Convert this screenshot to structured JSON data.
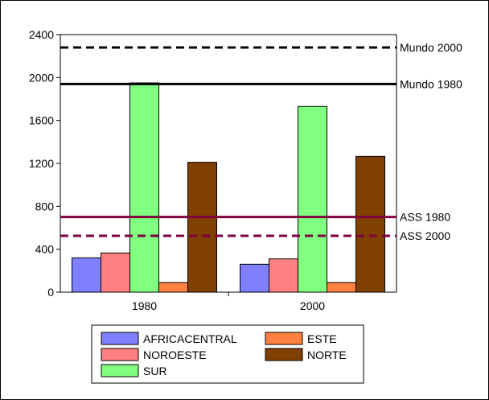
{
  "chart_data": {
    "type": "bar",
    "title": "",
    "xlabel": "",
    "ylabel": "",
    "ylim": [
      0,
      2400
    ],
    "yticks": [
      0,
      400,
      800,
      1200,
      1600,
      2000,
      2400
    ],
    "categories": [
      "1980",
      "2000"
    ],
    "series": [
      {
        "name": "AFRICACENTRAL",
        "color": "#8080ff",
        "values": [
          320,
          260
        ]
      },
      {
        "name": "NOROESTE",
        "color": "#ff8080",
        "values": [
          365,
          310
        ]
      },
      {
        "name": "SUR",
        "color": "#80ff80",
        "values": [
          1950,
          1730
        ]
      },
      {
        "name": "ESTE",
        "color": "#ff8040",
        "values": [
          90,
          90
        ]
      },
      {
        "name": "NORTE",
        "color": "#804000",
        "values": [
          1210,
          1265
        ]
      }
    ],
    "reference_lines": [
      {
        "label": "Mundo 2000",
        "value": 2280,
        "color": "#000000",
        "style": "dashed"
      },
      {
        "label": "Mundo 1980",
        "value": 1940,
        "color": "#000000",
        "style": "solid"
      },
      {
        "label": "ASS 1980",
        "value": 700,
        "color": "#800040",
        "style": "solid"
      },
      {
        "label": "ASS 2000",
        "value": 525,
        "color": "#800040",
        "style": "dashed"
      }
    ],
    "legend_position": "bottom",
    "grid": false
  }
}
